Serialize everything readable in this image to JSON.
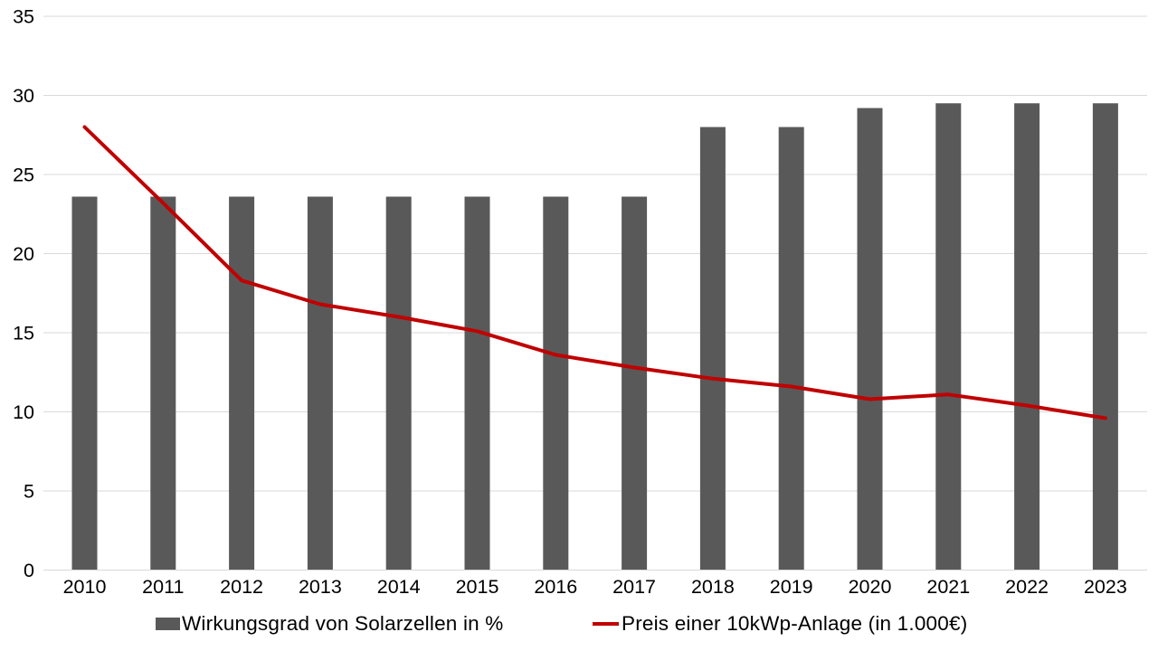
{
  "chart_data": {
    "type": "combo",
    "categories": [
      "2010",
      "2011",
      "2012",
      "2013",
      "2014",
      "2015",
      "2016",
      "2017",
      "2018",
      "2019",
      "2020",
      "2021",
      "2022",
      "2023"
    ],
    "series": [
      {
        "name": "Wirkungsgrad von Solarzellen in %",
        "type": "bar",
        "color": "#595959",
        "values": [
          23.6,
          23.6,
          23.6,
          23.6,
          23.6,
          23.6,
          23.6,
          23.6,
          28.0,
          28.0,
          29.2,
          29.5,
          29.5,
          29.5
        ]
      },
      {
        "name": "Preis einer 10kWp-Anlage (in 1.000€)",
        "type": "line",
        "color": "#C00000",
        "values": [
          28.0,
          23.2,
          18.3,
          16.8,
          16.0,
          15.1,
          13.6,
          12.8,
          12.1,
          11.6,
          10.8,
          11.1,
          10.4,
          9.6
        ]
      }
    ],
    "title": "",
    "xlabel": "",
    "ylabel": "",
    "ylim": [
      0,
      35
    ],
    "yticks": [
      "0",
      "5",
      "10",
      "15",
      "20",
      "25",
      "30",
      "35"
    ],
    "grid": true,
    "legend_position": "bottom",
    "colors": {
      "background": "#FFFFFF",
      "gridline": "#D9D9D9",
      "axis_text": "#000000"
    }
  }
}
